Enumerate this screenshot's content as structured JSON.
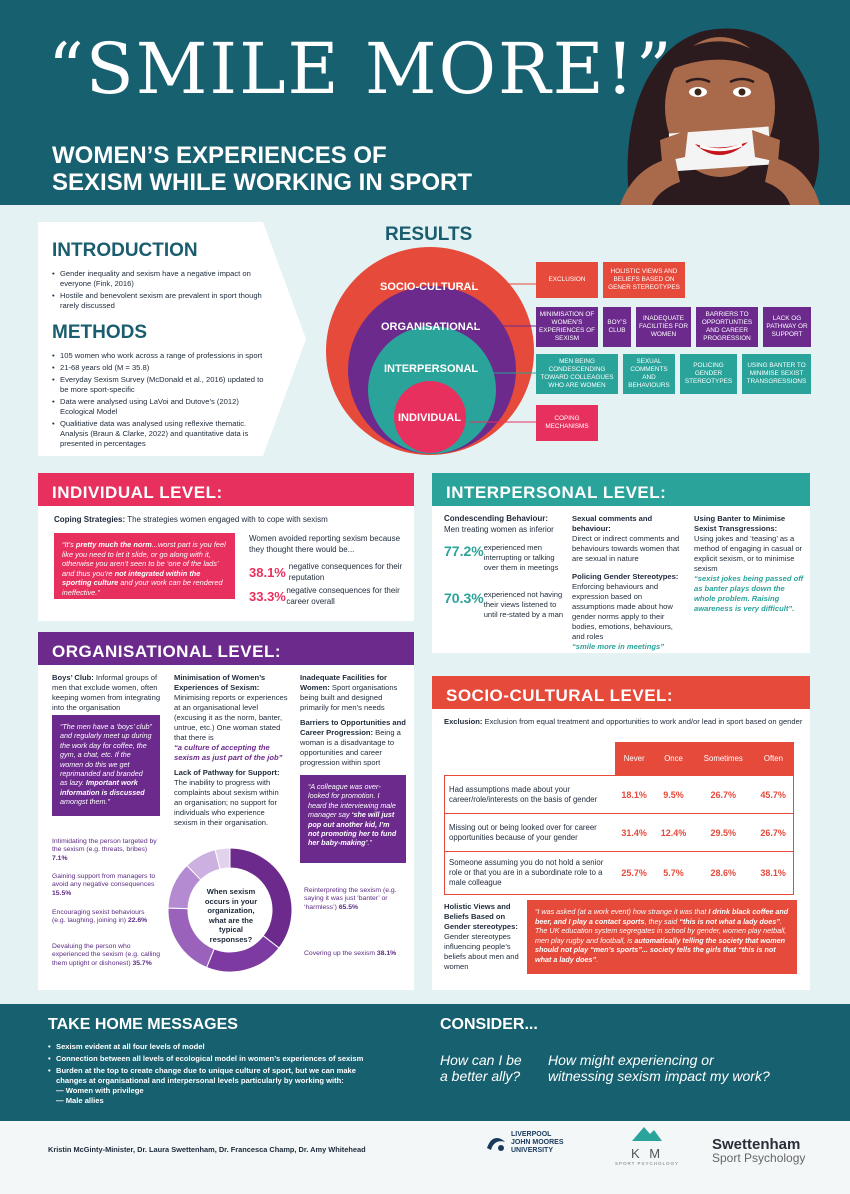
{
  "header": {
    "title": "“SMILE MORE!”",
    "subtitle_line1": "WOMEN’S EXPERIENCES OF",
    "subtitle_line2": "SEXISM WHILE WORKING IN SPORT"
  },
  "intro": {
    "heading": "INTRODUCTION",
    "bullets": [
      "Gender inequality and sexism have a negative impact on everyone (Fink, 2016)",
      "Hostile and benevolent sexism are prevalent in sport though rarely discussed"
    ]
  },
  "methods": {
    "heading": "METHODS",
    "bullets": [
      "105 women who work across a range of professions in sport",
      "21-68 years old (M = 35.8)",
      "Everyday Sexism Survey (McDonald et al., 2016) updated to be more sport-specific",
      "Data were analysed using LaVoi and Dutove’s (2012) Ecological Model",
      "Qualitiative data was analysed using reflexive thematic. Analysis (Braun & Clarke, 2022) and quantitative data is presented in percentages"
    ]
  },
  "results": {
    "heading": "RESULTS",
    "levels": [
      "SOCIO-CULTURAL",
      "ORGANISATIONAL",
      "INTERPERSONAL",
      "INDIVIDUAL"
    ],
    "socio_boxes": [
      "EXCLUSION",
      "HOLISTIC VIEWS AND BELIEFS BASED ON GENER STEREOTYPES"
    ],
    "org_boxes": [
      "MINIMISATION OF WOMEN’S EXPERIENCES OF SEXISM",
      "BOY’S CLUB",
      "INADEQUATE FACILITIES FOR WOMEN",
      "BARRIERS TO OPPORTUNTIES AND CAREER PROGRESSION",
      "LACK OG PATHWAY OR SUPPORT"
    ],
    "inter_boxes": [
      "MEN BEING CONDESCENDING TOWARD COLLEAGUES WHO ARE WOMEN",
      "SEXUAL COMMENTS AND BEHAVIOURS",
      "POLICING GENDER STEREOTYPES",
      "USING BANTER TO MINIMISE SEXIST TRANSGRESSIONS"
    ],
    "ind_boxes": [
      "COPING MECHANISMS"
    ]
  },
  "individual": {
    "heading": "INDIVIDUAL LEVEL:",
    "coping_bold": "Coping Strategies:",
    "coping_text": " The strategies women engaged with to cope with sexism",
    "quote_a": "“It’s ",
    "quote_b": "pretty much the norm",
    "quote_c": "...worst part is you feel like you need to let it slide, or go along with it, otherwise you aren’t seen to be ‘one of the lads’ and thus you’re ",
    "quote_d": "not integrated within the sporting culture",
    "quote_e": " and your work can be rendered ineffective.”",
    "avoid_text": "Women avoided reporting sexism because they thought there would be...",
    "stats": [
      {
        "pct": "38.1%",
        "text": "negative consequences for their reputation"
      },
      {
        "pct": "33.3%",
        "text": "negative consequences for their career overall"
      }
    ]
  },
  "interpersonal": {
    "heading": "INTERPERSONAL LEVEL:",
    "cond_title": "Condescending Behaviour:",
    "cond_text": "Men treating women as inferior",
    "stats": [
      {
        "pct": "77.2%",
        "text": "experienced men interrupting or talking over them in meetings"
      },
      {
        "pct": "70.3%",
        "text": "experienced not having their views listened to until re-stated by a man"
      }
    ],
    "sexual_title": "Sexual comments and behaviour:",
    "sexual_text": "Direct or indirect comments and behaviours towards women that are sexual in nature",
    "policing_title": "Policing Gender Stereotypes:",
    "policing_text": "Enforcing behaviours and expression based on assumptions made about how gender norms apply to their bodies, emotions, behaviours, and roles",
    "policing_quote": "“smile more in meetings”",
    "banter_title": "Using Banter to Minimise Sexist Transgressions:",
    "banter_text": "Using jokes and ‘teasing’ as a method of engaging in casual or explicit sexism, or to minimise sexism",
    "banter_quote": "“sexist jokes being passed off as banter plays down the whole problem. Raising awareness is very difficult”."
  },
  "organisational": {
    "heading": "ORGANISATIONAL LEVEL:",
    "boys_title": "Boys’ Club:",
    "boys_text": " Informal groups of men that exclude women, often keeping women from integrating into the organisation",
    "boys_quote_a": "“The men have a ‘boys’ club” and regularly meet up during the work day for coffee, the gym, a chat, etc. If the women do this we get reprimanded and branded as lazy. ",
    "boys_quote_b": "Important work information is discussed",
    "boys_quote_c": " amongst them.”",
    "min_title": "Minimisation of Women’s Experiences of Sexism:",
    "min_text": "Minimising reports or experiences at an organisational level (excusing it as the norm, banter, untrue, etc.) One woman stated that there is ",
    "min_quote": "“a culture of accepting the sexism as just part of the job”",
    "lack_title": "Lack of Pathway for Support:",
    "lack_text": "The inability to progress with complaints about sexism within an organisation; no support for individuals who experience sexism in their organisation.",
    "fac_title": "Inadequate Facilities for Women:",
    "fac_text": " Sport organisations being built and designed primarily for men’s needs",
    "barrier_title": "Barriers to Opportunities and Career Progression:",
    "barrier_text": " Being a woman is a disadvantage to opportunities and career progression within sport",
    "promo_quote_a": "“A colleague was over-looked for promotion. I heard the interviewing male manager say ",
    "promo_quote_b": "‘she will just pop out another kid, I’m not promoting her to fund her baby-making’",
    "promo_quote_c": ".”",
    "donut_center": "When sexism occurs in your organization, what are the typical responses?"
  },
  "chart_data": {
    "type": "pie",
    "title": "When sexism occurs in your organization, what are the typical responses?",
    "categories": [
      "Reinterpreting the sexism (e.g. saying it was just ‘banter’ or ‘harmless’)",
      "Covering up the sexism",
      "Devaluing the person who experienced the sexism (e.g. calling them uptight or dishonest)",
      "Encouraging sexist behaviours (e.g. laughing, joining in)",
      "Gaining support from managers to avoid any negative consequences",
      "Intimidating the person targeted by the sexism (e.g. threats, bribes)"
    ],
    "values": [
      65.5,
      38.1,
      35.7,
      22.6,
      15.5,
      7.1
    ],
    "labels": [
      {
        "text": "Reinterpreting the sexism (e.g. saying it was just ‘banter’ or ‘harmless’)",
        "pct": "65.5%"
      },
      {
        "text": "Covering up the sexism",
        "pct": "38.1%"
      },
      {
        "text": "Devaluing the person who experienced the sexism (e.g. calling them uptight or dishonest)",
        "pct": "35.7%"
      },
      {
        "text": "Encouraging sexist behaviours (e.g. laughing, joining in)",
        "pct": "22.6%"
      },
      {
        "text": "Gaining support from managers to avoid any negative consequences",
        "pct": "15.5%"
      },
      {
        "text": "Intimidating the person targeted by the sexism (e.g. threats, bribes)",
        "pct": "7.1%"
      }
    ],
    "colors": [
      "#6b2a8c",
      "#7d3aa0",
      "#9a62bb",
      "#b48bd0",
      "#ccb0e0",
      "#e2d2ee"
    ]
  },
  "socio": {
    "heading": "SOCIO-CULTURAL LEVEL:",
    "excl_title": "Exclusion:",
    "excl_text": " Exclusion from equal treatment and opportunities to work and/or lead in sport based on gender",
    "table": {
      "headers": [
        "Never",
        "Once",
        "Sometimes",
        "Often"
      ],
      "rows": [
        {
          "label": "Had assumptions made about your career/role/interests on the basis of gender",
          "values": [
            "18.1%",
            "9.5%",
            "26.7%",
            "45.7%"
          ]
        },
        {
          "label": "Missing out or being looked over for career opportunities because of your gender",
          "values": [
            "31.4%",
            "12.4%",
            "29.5%",
            "26.7%"
          ]
        },
        {
          "label": "Someone assuming you do not hold a senior role or that you are in a subordinate role to a male colleague",
          "values": [
            "25.7%",
            "5.7%",
            "28.6%",
            "38.1%"
          ]
        }
      ]
    },
    "holistic_title": "Holistic Views and Beliefs Based on Gender stereotypes:",
    "holistic_text": "Gender stereotypes influencing people’s beliefs about men and women",
    "quote_a": "“I was asked (at a work event) how strange it was that ",
    "quote_b": "I drink black coffee and beer, and I play a contact sports",
    "quote_c": ", they said ",
    "quote_d": "“this is not what a lady does”",
    "quote_e": ". The UK education system segregates in school by gender, women play netball, men play rugby and football, is ",
    "quote_f": "automatically telling the society that women should not play “men’s sports”... society tells the girls that “this is not what a lady does”",
    "quote_g": "."
  },
  "take_home": {
    "heading": "TAKE HOME MESSAGES",
    "bullets": [
      "Sexism evident at all four levels of model",
      "Connection between all levels of ecological model in women’s experiences of sexism",
      "Burden at the top to create change due to unique culture of sport, but we can make changes at organisational and interpersonal levels particularly by working with:"
    ],
    "subs": [
      "— Women with privilege",
      "— Male allies"
    ]
  },
  "consider": {
    "heading": "CONSIDER...",
    "q1a": "How can I be",
    "q1b": "a better ally?",
    "q2a": "How might experiencing or",
    "q2b": "witnessing sexism impact my work?"
  },
  "footer": {
    "authors": "Kristin McGinty-Minister, Dr. Laura Swettenham, Dr. Francesca Champ, Dr. Amy Whitehead",
    "ljmu_1": "LIVERPOOL",
    "ljmu_2": "JOHN MOORES",
    "ljmu_3": "UNIVERSITY",
    "km": "K M",
    "km_sub": "SPORT PSYCHOLOGY",
    "swett_1": "Swettenham",
    "swett_2": "Sport Psychology"
  },
  "colors": {
    "teal_dark": "#17606f",
    "red": "#e64a3b",
    "pink": "#e8305f",
    "purple": "#6b2a8c",
    "teal": "#2aa39a"
  }
}
